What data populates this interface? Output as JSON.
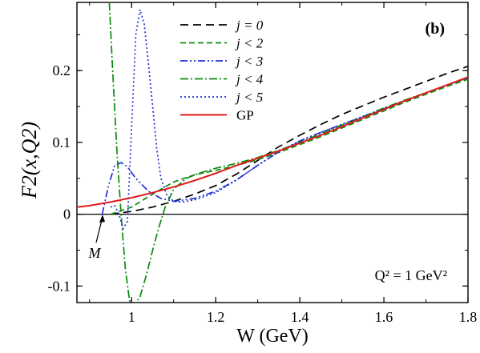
{
  "chart_data": {
    "type": "line",
    "panel_label": "(b)",
    "xlabel": "W (GeV)",
    "ylabel": "F2(x,Q2)",
    "xlim": [
      0.87,
      1.8
    ],
    "ylim": [
      -0.123,
      0.295
    ],
    "x_ticks": [
      1.0,
      1.2,
      1.4,
      1.6,
      1.8
    ],
    "x_tick_labels": [
      "1",
      "1.2",
      "1.4",
      "1.6",
      "1.8"
    ],
    "y_ticks": [
      -0.1,
      0,
      0.1,
      0.2
    ],
    "y_tick_labels": [
      "-0.1",
      "0",
      "0.1",
      "0.2"
    ],
    "zero_line": true,
    "grid": false,
    "legend_position": "top-center",
    "annotation_threshold": {
      "text": "M",
      "x": 0.938,
      "y": 0.0
    },
    "annotation_q2": "Q² = 1 GeV²",
    "series": [
      {
        "name": "j = 0",
        "color": "#000000",
        "dash": "10,6",
        "x": [
          0.95,
          1.0,
          1.05,
          1.1,
          1.15,
          1.2,
          1.25,
          1.3,
          1.35,
          1.4,
          1.45,
          1.5,
          1.55,
          1.6,
          1.65,
          1.7,
          1.75,
          1.8
        ],
        "y": [
          0.0,
          0.004,
          0.01,
          0.018,
          0.028,
          0.04,
          0.056,
          0.075,
          0.094,
          0.11,
          0.125,
          0.139,
          0.151,
          0.163,
          0.174,
          0.185,
          0.196,
          0.206
        ]
      },
      {
        "name": "j < 2",
        "color": "#0b8a0b",
        "dash": "7,4",
        "x": [
          0.95,
          1.0,
          1.05,
          1.1,
          1.15,
          1.2,
          1.25,
          1.3,
          1.35,
          1.4,
          1.45,
          1.5,
          1.55,
          1.6,
          1.65,
          1.7,
          1.75,
          1.8
        ],
        "y": [
          0.0,
          0.01,
          0.028,
          0.045,
          0.055,
          0.061,
          0.068,
          0.076,
          0.086,
          0.097,
          0.108,
          0.12,
          0.132,
          0.144,
          0.156,
          0.167,
          0.178,
          0.188
        ]
      },
      {
        "name": "j < 3",
        "color": "#1f2fd6",
        "dash": "9,3,2,3,2,3",
        "x": [
          0.93,
          0.945,
          0.96,
          0.975,
          0.99,
          1.01,
          1.04,
          1.07,
          1.1,
          1.15,
          1.2,
          1.25,
          1.3,
          1.35,
          1.4,
          1.45,
          1.5,
          1.55,
          1.6,
          1.65,
          1.7,
          1.75,
          1.8
        ],
        "y": [
          0.0,
          0.04,
          0.068,
          0.072,
          0.066,
          0.05,
          0.032,
          0.022,
          0.018,
          0.022,
          0.032,
          0.048,
          0.068,
          0.087,
          0.102,
          0.114,
          0.125,
          0.136,
          0.147,
          0.158,
          0.169,
          0.18,
          0.19
        ]
      },
      {
        "name": "j < 4",
        "color": "#0b8a0b",
        "dash": "10,3,2,3",
        "x": [
          0.947,
          0.955,
          0.965,
          0.975,
          0.985,
          0.995,
          1.005,
          1.02,
          1.035,
          1.05,
          1.065,
          1.08,
          1.1,
          1.13,
          1.16,
          1.2,
          1.25,
          1.3,
          1.35,
          1.4,
          1.45,
          1.5,
          1.55,
          1.6,
          1.65,
          1.7,
          1.75,
          1.8
        ],
        "y": [
          0.295,
          0.2,
          0.09,
          0.0,
          -0.075,
          -0.12,
          -0.128,
          -0.115,
          -0.085,
          -0.05,
          -0.018,
          0.01,
          0.035,
          0.05,
          0.057,
          0.064,
          0.071,
          0.079,
          0.089,
          0.1,
          0.112,
          0.124,
          0.136,
          0.148,
          0.159,
          0.169,
          0.18,
          0.19
        ]
      },
      {
        "name": "j < 5",
        "color": "#1f2fd6",
        "dash": "2,3",
        "x": [
          0.95,
          0.96,
          0.97,
          0.98,
          0.99,
          1.0,
          1.01,
          1.02,
          1.03,
          1.04,
          1.05,
          1.06,
          1.07,
          1.085,
          1.1,
          1.12,
          1.15,
          1.2,
          1.25,
          1.3,
          1.35,
          1.4,
          1.45,
          1.5,
          1.55,
          1.6,
          1.65,
          1.7,
          1.75,
          1.8
        ],
        "y": [
          0.01,
          0.012,
          0.0,
          -0.02,
          -0.01,
          0.12,
          0.25,
          0.285,
          0.265,
          0.21,
          0.15,
          0.09,
          0.05,
          0.025,
          0.018,
          0.017,
          0.02,
          0.03,
          0.048,
          0.068,
          0.087,
          0.102,
          0.114,
          0.125,
          0.136,
          0.147,
          0.158,
          0.169,
          0.18,
          0.19
        ]
      },
      {
        "name": "GP",
        "color": "#e01b1b",
        "dash": "",
        "x": [
          0.87,
          0.9,
          0.95,
          1.0,
          1.05,
          1.1,
          1.15,
          1.2,
          1.25,
          1.3,
          1.35,
          1.4,
          1.45,
          1.5,
          1.55,
          1.6,
          1.65,
          1.7,
          1.75,
          1.8
        ],
        "y": [
          0.01,
          0.012,
          0.017,
          0.023,
          0.03,
          0.038,
          0.047,
          0.057,
          0.068,
          0.078,
          0.088,
          0.099,
          0.11,
          0.122,
          0.134,
          0.146,
          0.158,
          0.169,
          0.18,
          0.191
        ]
      }
    ]
  }
}
